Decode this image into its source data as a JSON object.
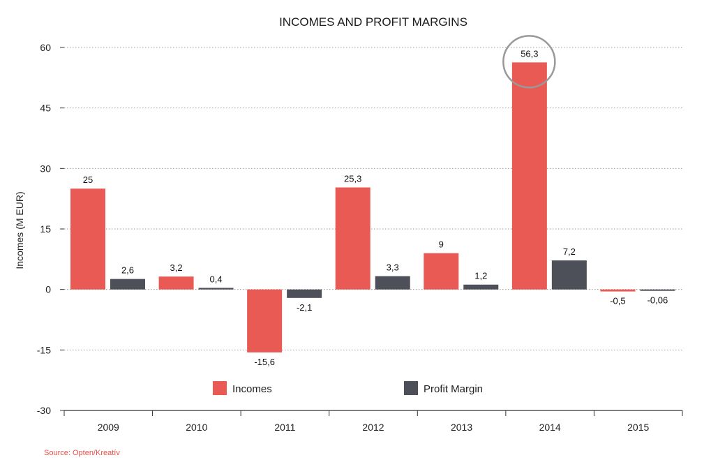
{
  "chart_data": {
    "type": "bar",
    "title": "INCOMES AND PROFIT MARGINS",
    "xlabel": "",
    "ylabel": "Incomes (M EUR)",
    "ylim": [
      -30,
      60
    ],
    "yticks": [
      60,
      45,
      30,
      15,
      0,
      -15,
      -30
    ],
    "grid": true,
    "categories": [
      "2009",
      "2010",
      "2011",
      "2012",
      "2013",
      "2014",
      "2015"
    ],
    "series": [
      {
        "name": "Incomes",
        "color": "#e85a53",
        "values": [
          25,
          3.2,
          -15.6,
          25.3,
          9,
          56.3,
          -0.5
        ],
        "labels": [
          "25",
          "3,2",
          "-15,6",
          "25,3",
          "9",
          "56,3",
          "-0,5"
        ]
      },
      {
        "name": "Profit Margin",
        "color": "#4d5058",
        "values": [
          2.6,
          0.4,
          -2.1,
          3.3,
          1.2,
          7.2,
          -0.06
        ],
        "labels": [
          "2,6",
          "0,4",
          "-2,1",
          "3,3",
          "1,2",
          "7,2",
          "-0,06"
        ]
      }
    ],
    "highlight": {
      "category": "2014",
      "series": "Incomes"
    },
    "legend": "bottom-center",
    "source": "Source: Opten/Kreatív"
  }
}
